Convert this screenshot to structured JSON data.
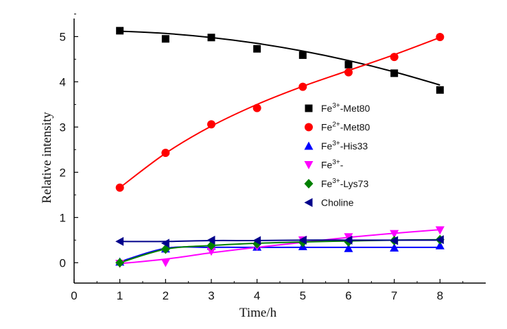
{
  "chart_data": {
    "type": "scatter",
    "title": "",
    "xlabel": "Time/h",
    "ylabel": "Relative intensity",
    "xlim": [
      0,
      9
    ],
    "ylim": [
      -0.45,
      5.4
    ],
    "x_ticks": [
      0,
      1,
      2,
      3,
      4,
      5,
      6,
      7,
      8
    ],
    "y_ticks": [
      0,
      1,
      2,
      3,
      4,
      5
    ],
    "grid": false,
    "legend_position": "right-center",
    "x": [
      1,
      2,
      3,
      4,
      5,
      6,
      7,
      8
    ],
    "series": [
      {
        "name_base": "Fe",
        "name_sup": "3+",
        "name_rest": "-Met80",
        "marker": "square",
        "color": "#000000",
        "values": [
          5.13,
          4.95,
          4.98,
          4.73,
          4.59,
          4.38,
          4.19,
          3.82
        ],
        "fit": [
          5.12,
          5.07,
          4.98,
          4.85,
          4.68,
          4.47,
          4.22,
          3.93
        ]
      },
      {
        "name_base": "Fe",
        "name_sup": "2+",
        "name_rest": "-Met80",
        "marker": "circle",
        "color": "#ff0000",
        "values": [
          1.66,
          2.43,
          3.06,
          3.42,
          3.89,
          4.21,
          4.55,
          4.99
        ],
        "fit": [
          1.66,
          2.42,
          3.02,
          3.5,
          3.9,
          4.25,
          4.6,
          4.98
        ]
      },
      {
        "name_base": "Fe",
        "name_sup": "3+",
        "name_rest": "-His33",
        "marker": "triangle-up",
        "color": "#0000ff",
        "values": [
          0.02,
          0.31,
          0.37,
          0.35,
          0.36,
          0.32,
          0.33,
          0.38
        ],
        "fit": [
          0.02,
          0.32,
          0.34,
          0.34,
          0.34,
          0.34,
          0.34,
          0.34
        ]
      },
      {
        "name_base": "Fe",
        "name_sup": "3+",
        "name_rest": "-",
        "marker": "triangle-down",
        "color": "#ff00ff",
        "values": [
          -0.02,
          0.0,
          0.25,
          0.36,
          0.5,
          0.57,
          0.64,
          0.72
        ],
        "fit": [
          -0.02,
          0.08,
          0.22,
          0.34,
          0.45,
          0.56,
          0.65,
          0.73
        ]
      },
      {
        "name_base": "Fe",
        "name_sup": "3+",
        "name_rest": "-Lys73",
        "marker": "diamond",
        "color": "#008000",
        "values": [
          0.0,
          0.3,
          0.38,
          0.42,
          0.45,
          0.46,
          0.49,
          0.51
        ],
        "fit": [
          0.0,
          0.3,
          0.38,
          0.43,
          0.46,
          0.48,
          0.5,
          0.51
        ]
      },
      {
        "name_base": "Choline",
        "name_sup": "",
        "name_rest": "",
        "marker": "triangle-left",
        "color": "#00008b",
        "values": [
          0.47,
          0.43,
          0.5,
          0.49,
          0.5,
          0.5,
          0.49,
          0.51
        ],
        "fit": [
          0.47,
          0.47,
          0.49,
          0.49,
          0.5,
          0.5,
          0.5,
          0.5
        ]
      }
    ]
  }
}
